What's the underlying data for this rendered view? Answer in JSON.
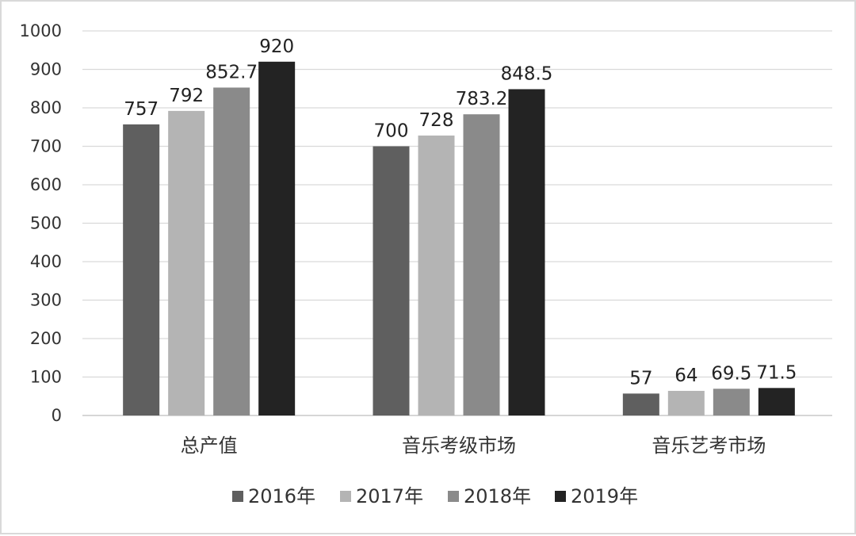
{
  "chart_data": {
    "type": "bar",
    "categories": [
      "总产值",
      "音乐考级市场",
      "音乐艺考市场"
    ],
    "series": [
      {
        "name": "2016年",
        "values": [
          757,
          700,
          57
        ],
        "color": "#5f5f5f"
      },
      {
        "name": "2017年",
        "values": [
          792,
          728,
          64
        ],
        "color": "#b4b4b4"
      },
      {
        "name": "2018年",
        "values": [
          852.7,
          783.2,
          69.5
        ],
        "color": "#8a8a8a"
      },
      {
        "name": "2019年",
        "values": [
          920,
          848.5,
          71.5
        ],
        "color": "#232323"
      }
    ],
    "data_labels": [
      [
        "757",
        "700",
        "57"
      ],
      [
        "792",
        "728",
        "64"
      ],
      [
        "852.7",
        "783.2",
        "69.5"
      ],
      [
        "920",
        "848.5",
        "71.5"
      ]
    ],
    "yticks": [
      "0",
      "100",
      "200",
      "300",
      "400",
      "500",
      "600",
      "700",
      "800",
      "900",
      "1000"
    ],
    "ylim": [
      0,
      1000
    ],
    "grid": true,
    "legend": "bottom-center",
    "title": "",
    "xlabel": "",
    "ylabel": ""
  }
}
